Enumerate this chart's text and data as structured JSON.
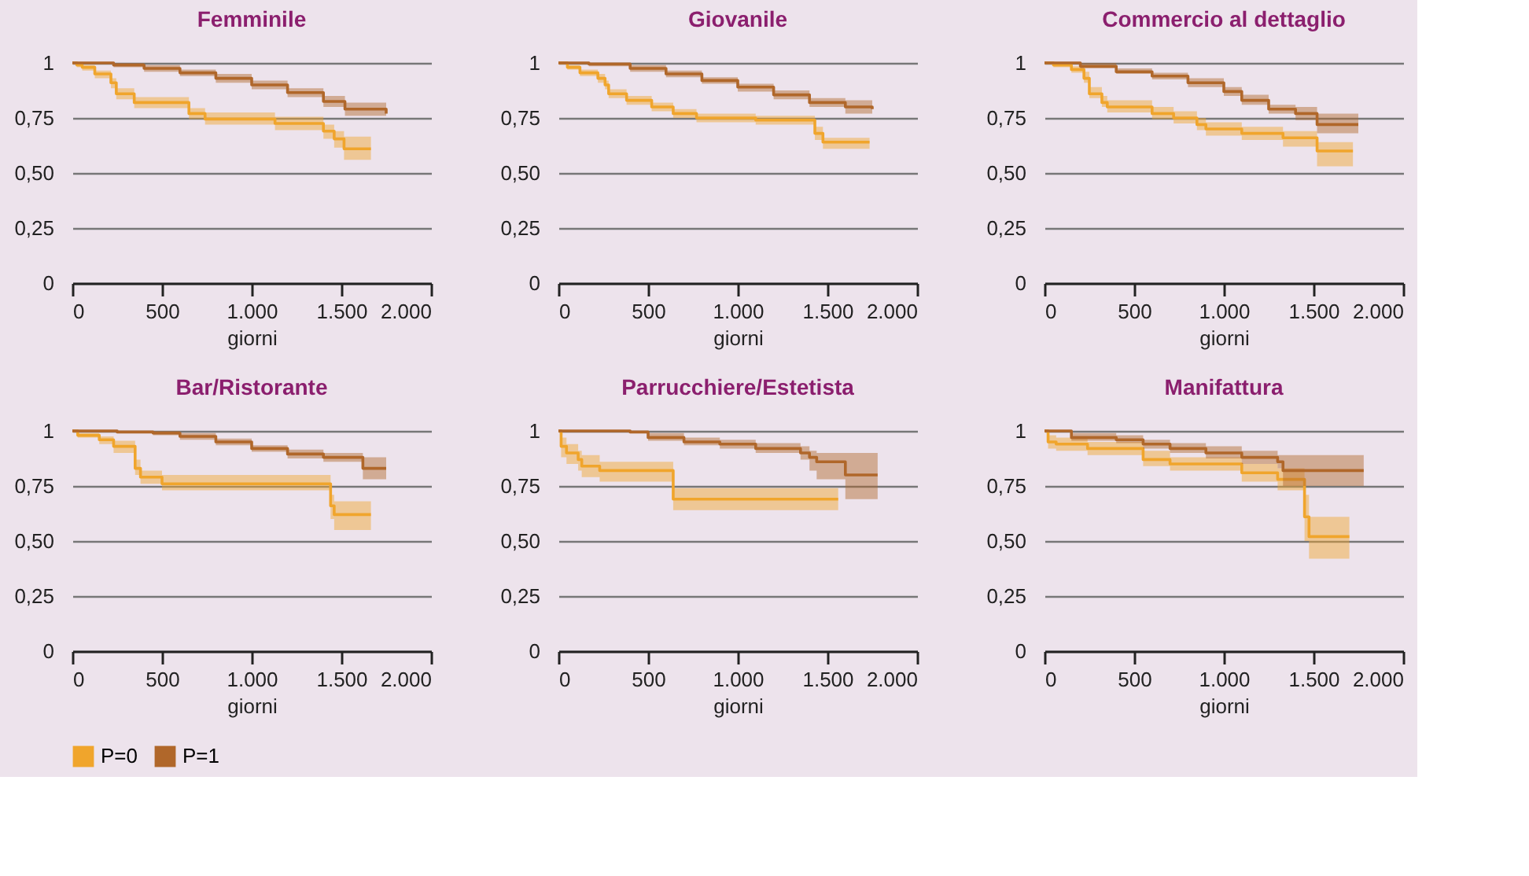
{
  "chart_data": [
    {
      "type": "step",
      "title": "Femminile",
      "xlabel": "giorni",
      "xlim": [
        0,
        2000
      ],
      "ylim": [
        0,
        1
      ],
      "xticks": [
        0,
        500,
        {
          "value": 1000,
          "label": "1.000"
        },
        {
          "value": 1500,
          "label": "1.500"
        },
        {
          "value": 2000,
          "label": "2.000"
        }
      ],
      "yticks": [
        0,
        {
          "value": 0.25,
          "label": "0,25"
        },
        {
          "value": 0.5,
          "label": "0,50"
        },
        {
          "value": 0.75,
          "label": "0,75"
        },
        1
      ],
      "grid": "y",
      "legend": "bottom",
      "series": [
        {
          "name": "P=0",
          "color": "#f0a52c",
          "x": [
            0,
            25,
            55,
            125,
            215,
            245,
            345,
            650,
            740,
            1130,
            1400,
            1460,
            1515,
            1665
          ],
          "values": [
            1,
            0.99,
            0.98,
            0.95,
            0.91,
            0.86,
            0.82,
            0.77,
            0.745,
            0.725,
            0.69,
            0.655,
            0.61,
            0.61
          ],
          "lower": [
            1,
            0.98,
            0.965,
            0.93,
            0.885,
            0.835,
            0.795,
            0.745,
            0.72,
            0.695,
            0.655,
            0.615,
            0.56,
            0.56
          ],
          "upper": [
            1,
            1,
            0.99,
            0.965,
            0.93,
            0.885,
            0.845,
            0.795,
            0.775,
            0.755,
            0.72,
            0.69,
            0.665,
            0.665
          ]
        },
        {
          "name": "P=1",
          "color": "#b0672a",
          "x": [
            0,
            230,
            400,
            600,
            800,
            1000,
            1200,
            1400,
            1520,
            1750
          ],
          "values": [
            1,
            0.99,
            0.975,
            0.955,
            0.93,
            0.9,
            0.865,
            0.825,
            0.79,
            0.77
          ],
          "lower": [
            1,
            0.98,
            0.96,
            0.94,
            0.91,
            0.88,
            0.845,
            0.8,
            0.76,
            0.74
          ],
          "upper": [
            1,
            1,
            0.99,
            0.97,
            0.95,
            0.92,
            0.885,
            0.85,
            0.82,
            0.81
          ]
        }
      ]
    },
    {
      "type": "step",
      "title": "Giovanile",
      "xlabel": "giorni",
      "xlim": [
        0,
        2000
      ],
      "ylim": [
        0,
        1
      ],
      "xticks": [
        0,
        500,
        {
          "value": 1000,
          "label": "1.000"
        },
        {
          "value": 1500,
          "label": "1.500"
        },
        {
          "value": 2000,
          "label": "2.000"
        }
      ],
      "yticks": [
        0,
        {
          "value": 0.25,
          "label": "0,25"
        },
        {
          "value": 0.5,
          "label": "0,50"
        },
        {
          "value": 0.75,
          "label": "0,75"
        },
        1
      ],
      "grid": "y",
      "legend": "bottom",
      "series": [
        {
          "name": "P=0",
          "color": "#f0a52c",
          "x": [
            0,
            50,
            120,
            220,
            260,
            280,
            380,
            520,
            640,
            770,
            1100,
            1430,
            1475,
            1735
          ],
          "values": [
            1,
            0.98,
            0.955,
            0.93,
            0.9,
            0.86,
            0.83,
            0.8,
            0.77,
            0.75,
            0.74,
            0.68,
            0.64,
            0.64
          ],
          "lower": [
            1,
            0.97,
            0.94,
            0.91,
            0.88,
            0.84,
            0.81,
            0.78,
            0.75,
            0.73,
            0.72,
            0.65,
            0.61,
            0.61
          ],
          "upper": [
            1,
            0.99,
            0.97,
            0.95,
            0.92,
            0.88,
            0.85,
            0.82,
            0.79,
            0.77,
            0.76,
            0.71,
            0.66,
            0.66
          ]
        },
        {
          "name": "P=1",
          "color": "#b0672a",
          "x": [
            0,
            170,
            400,
            600,
            800,
            1000,
            1200,
            1400,
            1600,
            1750
          ],
          "values": [
            1,
            0.995,
            0.975,
            0.95,
            0.92,
            0.89,
            0.855,
            0.82,
            0.8,
            0.79
          ],
          "lower": [
            1,
            0.985,
            0.96,
            0.935,
            0.905,
            0.87,
            0.835,
            0.8,
            0.77,
            0.76
          ],
          "upper": [
            1,
            1,
            0.99,
            0.965,
            0.935,
            0.905,
            0.875,
            0.84,
            0.83,
            0.82
          ]
        }
      ]
    },
    {
      "type": "step",
      "title": "Commercio al dettaglio",
      "xlabel": "giorni",
      "xlim": [
        0,
        2000
      ],
      "ylim": [
        0,
        1
      ],
      "xticks": [
        0,
        500,
        {
          "value": 1000,
          "label": "1.000"
        },
        {
          "value": 1500,
          "label": "1.500"
        },
        {
          "value": 2000,
          "label": "2.000"
        }
      ],
      "yticks": [
        0,
        {
          "value": 0.25,
          "label": "0,25"
        },
        {
          "value": 0.5,
          "label": "0,50"
        },
        {
          "value": 0.75,
          "label": "0,75"
        },
        1
      ],
      "grid": "y",
      "legend": "bottom",
      "series": [
        {
          "name": "P=0",
          "color": "#f0a52c",
          "x": [
            0,
            50,
            150,
            220,
            250,
            320,
            350,
            600,
            720,
            850,
            900,
            1100,
            1330,
            1520,
            1720
          ],
          "values": [
            1,
            0.99,
            0.97,
            0.93,
            0.86,
            0.82,
            0.8,
            0.77,
            0.75,
            0.72,
            0.7,
            0.68,
            0.66,
            0.6,
            0.6
          ],
          "lower": [
            1,
            0.98,
            0.955,
            0.91,
            0.84,
            0.8,
            0.775,
            0.745,
            0.725,
            0.695,
            0.67,
            0.65,
            0.62,
            0.53,
            0.53
          ],
          "upper": [
            1,
            1,
            0.985,
            0.96,
            0.89,
            0.85,
            0.83,
            0.8,
            0.78,
            0.75,
            0.73,
            0.71,
            0.69,
            0.64,
            0.64
          ]
        },
        {
          "name": "P=1",
          "color": "#b0672a",
          "x": [
            0,
            200,
            400,
            600,
            800,
            1000,
            1100,
            1250,
            1400,
            1520,
            1750
          ],
          "values": [
            1,
            0.985,
            0.96,
            0.94,
            0.91,
            0.87,
            0.83,
            0.79,
            0.77,
            0.72,
            0.72
          ],
          "lower": [
            1,
            0.975,
            0.95,
            0.925,
            0.89,
            0.85,
            0.81,
            0.77,
            0.74,
            0.68,
            0.68
          ],
          "upper": [
            1,
            1,
            0.975,
            0.955,
            0.93,
            0.89,
            0.855,
            0.81,
            0.8,
            0.77,
            0.77
          ]
        }
      ]
    },
    {
      "type": "step",
      "title": "Bar/Ristorante",
      "xlabel": "giorni",
      "xlim": [
        0,
        2000
      ],
      "ylim": [
        0,
        1
      ],
      "xticks": [
        0,
        500,
        {
          "value": 1000,
          "label": "1.000"
        },
        {
          "value": 1500,
          "label": "1.500"
        },
        {
          "value": 2000,
          "label": "2.000"
        }
      ],
      "yticks": [
        0,
        {
          "value": 0.25,
          "label": "0,25"
        },
        {
          "value": 0.5,
          "label": "0,50"
        },
        {
          "value": 0.75,
          "label": "0,75"
        },
        1
      ],
      "grid": "y",
      "legend": "bottom",
      "series": [
        {
          "name": "P=0",
          "color": "#f0a52c",
          "x": [
            0,
            30,
            150,
            230,
            350,
            380,
            500,
            1440,
            1460,
            1665
          ],
          "values": [
            1,
            0.98,
            0.96,
            0.93,
            0.83,
            0.79,
            0.76,
            0.66,
            0.62,
            0.62
          ],
          "lower": [
            1,
            0.97,
            0.94,
            0.9,
            0.8,
            0.76,
            0.73,
            0.6,
            0.55,
            0.55
          ],
          "upper": [
            1,
            0.99,
            0.975,
            0.955,
            0.87,
            0.82,
            0.8,
            0.71,
            0.68,
            0.68
          ]
        },
        {
          "name": "P=1",
          "color": "#b0672a",
          "x": [
            0,
            250,
            450,
            600,
            800,
            1000,
            1200,
            1400,
            1620,
            1750
          ],
          "values": [
            1,
            0.995,
            0.99,
            0.975,
            0.95,
            0.92,
            0.895,
            0.88,
            0.83,
            0.83
          ],
          "lower": [
            1,
            0.99,
            0.98,
            0.96,
            0.935,
            0.905,
            0.875,
            0.86,
            0.78,
            0.78
          ],
          "upper": [
            1,
            1,
            1,
            0.99,
            0.965,
            0.935,
            0.915,
            0.9,
            0.88,
            0.88
          ]
        }
      ]
    },
    {
      "type": "step",
      "title": "Parrucchiere/Estetista",
      "xlabel": "giorni",
      "xlim": [
        0,
        2000
      ],
      "ylim": [
        0,
        1
      ],
      "xticks": [
        0,
        500,
        {
          "value": 1000,
          "label": "1.000"
        },
        {
          "value": 1500,
          "label": "1.500"
        },
        {
          "value": 2000,
          "label": "2.000"
        }
      ],
      "yticks": [
        0,
        {
          "value": 0.25,
          "label": "0,25"
        },
        {
          "value": 0.5,
          "label": "0,50"
        },
        {
          "value": 0.75,
          "label": "0,75"
        },
        1
      ],
      "grid": "y",
      "legend": "bottom",
      "series": [
        {
          "name": "P=0",
          "color": "#f0a52c",
          "x": [
            0,
            15,
            45,
            110,
            130,
            230,
            640,
            1560
          ],
          "values": [
            1,
            0.93,
            0.9,
            0.87,
            0.84,
            0.82,
            0.69,
            0.69
          ],
          "lower": [
            1,
            0.88,
            0.85,
            0.82,
            0.79,
            0.77,
            0.64,
            0.64
          ],
          "upper": [
            1,
            0.97,
            0.94,
            0.91,
            0.89,
            0.86,
            0.74,
            0.74
          ]
        },
        {
          "name": "P=1",
          "color": "#b0672a",
          "x": [
            0,
            400,
            500,
            700,
            900,
            1100,
            1350,
            1400,
            1440,
            1600,
            1780
          ],
          "values": [
            1,
            0.995,
            0.97,
            0.95,
            0.94,
            0.92,
            0.9,
            0.88,
            0.86,
            0.8,
            0.8
          ],
          "lower": [
            1,
            0.99,
            0.955,
            0.935,
            0.92,
            0.9,
            0.87,
            0.82,
            0.78,
            0.69,
            0.69
          ],
          "upper": [
            1,
            1,
            0.99,
            0.97,
            0.96,
            0.945,
            0.93,
            0.91,
            0.9,
            0.9,
            0.9
          ]
        }
      ]
    },
    {
      "type": "step",
      "title": "Manifattura",
      "xlabel": "giorni",
      "xlim": [
        0,
        2000
      ],
      "ylim": [
        0,
        1
      ],
      "xticks": [
        0,
        500,
        {
          "value": 1000,
          "label": "1.000"
        },
        {
          "value": 1500,
          "label": "1.500"
        },
        {
          "value": 2000,
          "label": "2.000"
        }
      ],
      "yticks": [
        0,
        {
          "value": 0.25,
          "label": "0,25"
        },
        {
          "value": 0.5,
          "label": "0,50"
        },
        {
          "value": 0.75,
          "label": "0,75"
        },
        1
      ],
      "grid": "y",
      "legend": "bottom",
      "series": [
        {
          "name": "P=0",
          "color": "#f0a52c",
          "x": [
            0,
            20,
            65,
            240,
            550,
            700,
            1100,
            1300,
            1450,
            1475,
            1700
          ],
          "values": [
            1,
            0.95,
            0.94,
            0.92,
            0.87,
            0.85,
            0.81,
            0.78,
            0.61,
            0.52,
            0.52
          ],
          "lower": [
            1,
            0.92,
            0.91,
            0.89,
            0.84,
            0.82,
            0.77,
            0.73,
            0.5,
            0.42,
            0.42
          ],
          "upper": [
            1,
            0.98,
            0.97,
            0.95,
            0.91,
            0.88,
            0.85,
            0.83,
            0.71,
            0.61,
            0.61
          ]
        },
        {
          "name": "P=1",
          "color": "#b0672a",
          "x": [
            0,
            150,
            400,
            550,
            700,
            900,
            1100,
            1300,
            1330,
            1780
          ],
          "values": [
            1,
            0.97,
            0.96,
            0.94,
            0.92,
            0.9,
            0.88,
            0.86,
            0.82,
            0.82
          ],
          "lower": [
            1,
            0.955,
            0.945,
            0.92,
            0.9,
            0.875,
            0.85,
            0.83,
            0.75,
            0.75
          ],
          "upper": [
            1,
            0.99,
            0.98,
            0.96,
            0.945,
            0.93,
            0.91,
            0.89,
            0.89,
            0.89
          ]
        }
      ]
    }
  ]
}
